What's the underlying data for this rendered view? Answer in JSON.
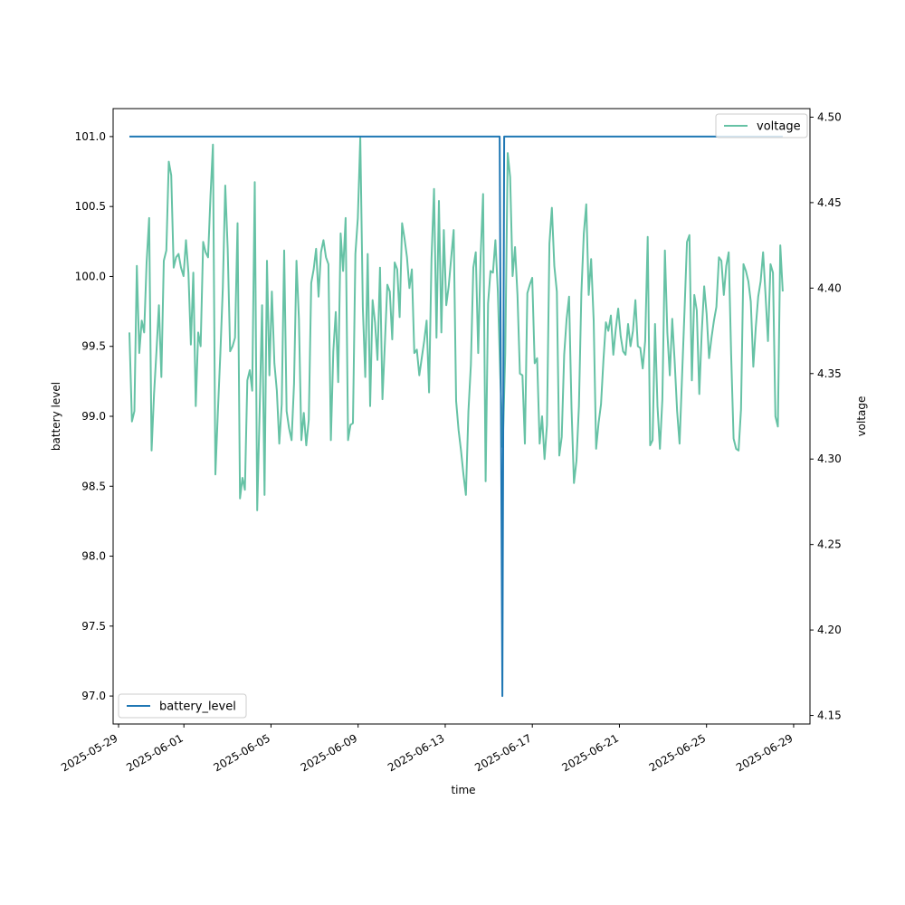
{
  "chart_data": {
    "type": "line",
    "title": "",
    "xlabel": "time",
    "ylabel_left": "battery level",
    "ylabel_right": "voltage",
    "x_tick_labels": [
      "2025-05-29",
      "2025-06-01",
      "2025-06-05",
      "2025-06-09",
      "2025-06-13",
      "2025-06-17",
      "2025-06-21",
      "2025-06-25",
      "2025-06-29"
    ],
    "x_ticks": [
      "2025-05-29",
      "2025-06-01",
      "2025-06-05",
      "2025-06-09",
      "2025-06-13",
      "2025-06-17",
      "2025-06-21",
      "2025-06-25",
      "2025-06-29"
    ],
    "xlim": [
      "2025-05-28T18:00",
      "2025-06-29T18:00"
    ],
    "y_left_ticks": [
      97.0,
      97.5,
      98.0,
      98.5,
      99.0,
      99.5,
      100.0,
      100.5,
      101.0
    ],
    "y_left_tick_labels": [
      "97.0",
      "97.5",
      "98.0",
      "98.5",
      "99.0",
      "99.5",
      "100.0",
      "100.5",
      "101.0"
    ],
    "ylim_left": [
      96.8,
      101.2
    ],
    "y_right_ticks": [
      4.15,
      4.2,
      4.25,
      4.3,
      4.35,
      4.4,
      4.45,
      4.5
    ],
    "y_right_tick_labels": [
      "4.15",
      "4.20",
      "4.25",
      "4.30",
      "4.35",
      "4.40",
      "4.45",
      "4.50"
    ],
    "ylim_right": [
      4.145,
      4.505
    ],
    "grid": false,
    "series": [
      {
        "name": "battery_level",
        "axis": "left",
        "color": "#1f77b4",
        "legend_position": "lower-left",
        "points": [
          [
            "2025-05-29T12:00",
            101.0
          ],
          [
            "2025-06-15T12:00",
            101.0
          ],
          [
            "2025-06-15T15:00",
            97.0
          ],
          [
            "2025-06-15T17:00",
            101.0
          ],
          [
            "2025-06-28T12:00",
            101.0
          ]
        ]
      },
      {
        "name": "voltage",
        "axis": "right",
        "color": "#66c2a5",
        "legend_position": "upper-right",
        "start": "2025-05-29T12:00",
        "end": "2025-06-28T12:00",
        "values": [
          4.374,
          4.322,
          4.328,
          4.413,
          4.362,
          4.381,
          4.374,
          4.415,
          4.441,
          4.305,
          4.338,
          4.363,
          4.39,
          4.348,
          4.416,
          4.422,
          4.474,
          4.466,
          4.412,
          4.418,
          4.42,
          4.412,
          4.407,
          4.428,
          4.409,
          4.367,
          4.409,
          4.331,
          4.374,
          4.366,
          4.427,
          4.421,
          4.418,
          4.454,
          4.484,
          4.291,
          4.327,
          4.362,
          4.4,
          4.46,
          4.423,
          4.363,
          4.366,
          4.371,
          4.438,
          4.277,
          4.289,
          4.282,
          4.346,
          4.352,
          4.34,
          4.462,
          4.27,
          4.328,
          4.39,
          4.279,
          4.416,
          4.349,
          4.398,
          4.356,
          4.34,
          4.309,
          4.332,
          4.422,
          4.328,
          4.318,
          4.311,
          4.344,
          4.416,
          4.382,
          4.311,
          4.327,
          4.308,
          4.323,
          4.403,
          4.411,
          4.423,
          4.395,
          4.421,
          4.428,
          4.418,
          4.414,
          4.311,
          4.363,
          4.386,
          4.345,
          4.432,
          4.41,
          4.441,
          4.311,
          4.32,
          4.321,
          4.42,
          4.441,
          4.488,
          4.389,
          4.348,
          4.42,
          4.331,
          4.393,
          4.38,
          4.358,
          4.412,
          4.335,
          4.368,
          4.402,
          4.398,
          4.37,
          4.415,
          4.411,
          4.383,
          4.438,
          4.429,
          4.418,
          4.4,
          4.411,
          4.362,
          4.364,
          4.349,
          4.359,
          4.369,
          4.381,
          4.339,
          4.417,
          4.458,
          4.371,
          4.451,
          4.374,
          4.434,
          4.39,
          4.401,
          4.418,
          4.434,
          4.334,
          4.317,
          4.305,
          4.291,
          4.279,
          4.328,
          4.355,
          4.412,
          4.421,
          4.362,
          4.419,
          4.455,
          4.287,
          4.391,
          4.41,
          4.409,
          4.428,
          4.398,
          4.349,
          4.307,
          4.362,
          4.479,
          4.465,
          4.407,
          4.424,
          4.396,
          4.35,
          4.349,
          4.309,
          4.397,
          4.402,
          4.406,
          4.356,
          4.359,
          4.309,
          4.325,
          4.3,
          4.32,
          4.426,
          4.447,
          4.413,
          4.398,
          4.302,
          4.313,
          4.361,
          4.382,
          4.395,
          4.33,
          4.286,
          4.299,
          4.331,
          4.397,
          4.432,
          4.449,
          4.396,
          4.417,
          4.381,
          4.306,
          4.321,
          4.332,
          4.358,
          4.38,
          4.375,
          4.384,
          4.361,
          4.376,
          4.388,
          4.372,
          4.363,
          4.361,
          4.379,
          4.366,
          4.375,
          4.393,
          4.366,
          4.365,
          4.353,
          4.369,
          4.43,
          4.308,
          4.311,
          4.379,
          4.331,
          4.306,
          4.335,
          4.422,
          4.374,
          4.349,
          4.382,
          4.357,
          4.328,
          4.309,
          4.349,
          4.387,
          4.427,
          4.431,
          4.346,
          4.396,
          4.387,
          4.338,
          4.374,
          4.401,
          4.385,
          4.359,
          4.371,
          4.381,
          4.389,
          4.418,
          4.416,
          4.396,
          4.413,
          4.421,
          4.361,
          4.312,
          4.306,
          4.305,
          4.329,
          4.414,
          4.41,
          4.404,
          4.392,
          4.354,
          4.377,
          4.395,
          4.404,
          4.421,
          4.396,
          4.369,
          4.414,
          4.409,
          4.325,
          4.319,
          4.425,
          4.398
        ]
      }
    ]
  }
}
